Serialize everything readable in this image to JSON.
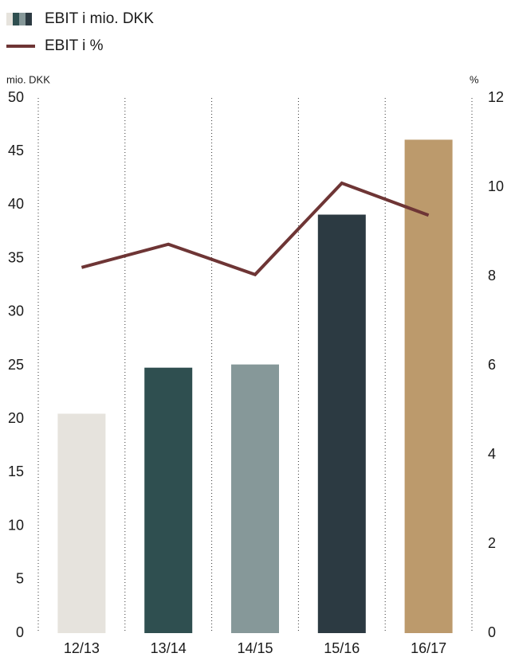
{
  "chart_data": {
    "type": "bar",
    "categories": [
      "12/13",
      "13/14",
      "14/15",
      "15/16",
      "16/17"
    ],
    "y_label": "mio. DKK",
    "y2_label": "%",
    "ylim": [
      0,
      50
    ],
    "yticks": [
      0,
      5,
      10,
      15,
      20,
      25,
      30,
      35,
      40,
      45,
      50
    ],
    "y2lim": [
      0,
      12
    ],
    "y2ticks": [
      0,
      2,
      4,
      6,
      8,
      10,
      12
    ],
    "series": [
      {
        "name": "EBIT i mio. DKK",
        "type": "bar",
        "colors": [
          "#e6e3dd",
          "#2f4f50",
          "#869899",
          "#2c3a42",
          "#bc9a6c"
        ],
        "values": [
          20.5,
          24.8,
          25.1,
          39.1,
          46.1
        ]
      },
      {
        "name": "EBIT i %",
        "type": "line",
        "axis": "y2",
        "color": "#6e3535",
        "values": [
          8.2,
          8.72,
          8.04,
          10.09,
          9.37
        ]
      }
    ]
  }
}
